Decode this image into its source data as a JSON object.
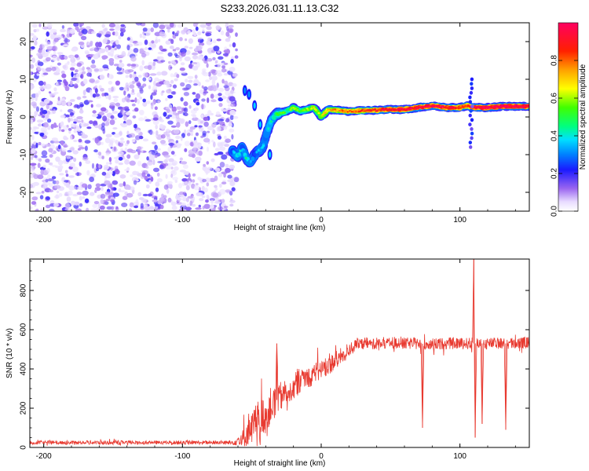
{
  "title": "S233.2026.031.11.13.C32",
  "chart_data": [
    {
      "type": "heatmap",
      "name": "spectrogram",
      "xlabel": "Height of straight line (km)",
      "ylabel": "Frequency (Hz)",
      "xlim": [
        -210,
        150
      ],
      "ylim": [
        -25,
        25
      ],
      "xticks": [
        -200,
        -100,
        0,
        100
      ],
      "yticks": [
        -20,
        -10,
        0,
        10,
        20
      ],
      "colorbar": {
        "label": "Normalized spectral amplitude",
        "range": [
          0.0,
          1.0
        ],
        "ticks": [
          0.0,
          0.2,
          0.4,
          0.6,
          0.8
        ],
        "tick_labels": [
          "0.0",
          "0.2",
          "0.4",
          "0.6",
          "0.8"
        ]
      },
      "noise_region": {
        "x": [
          -210,
          -63
        ],
        "amplitude": "0.1-0.3"
      },
      "signal_ridge": {
        "x": [
          -64,
          -60,
          -57,
          -54,
          -51,
          -48,
          -45,
          -42,
          -39,
          -36,
          -33,
          -30,
          -25,
          -20,
          -15,
          -10,
          -5,
          0,
          5,
          10,
          20,
          30,
          40,
          50,
          60,
          70,
          80,
          90,
          100,
          105,
          110,
          120,
          130,
          140,
          150
        ],
        "frequency": [
          -9,
          -10.5,
          -8,
          -11,
          -12,
          -10,
          -9,
          -8,
          -4,
          -1,
          0.5,
          1,
          1.5,
          2.5,
          1.5,
          2,
          2.5,
          0,
          2,
          1.8,
          1.5,
          1.7,
          1.8,
          2,
          2,
          2.5,
          3,
          2.5,
          2.5,
          3,
          2.5,
          2.5,
          2.8,
          2.8,
          2.8
        ],
        "amplitude": [
          0.3,
          0.4,
          0.35,
          0.4,
          0.35,
          0.3,
          0.35,
          0.35,
          0.4,
          0.45,
          0.45,
          0.5,
          0.5,
          0.55,
          0.5,
          0.55,
          0.6,
          0.6,
          0.65,
          0.7,
          0.75,
          0.8,
          0.85,
          0.88,
          0.9,
          0.9,
          0.9,
          0.88,
          0.85,
          0.8,
          0.9,
          0.95,
          0.95,
          0.95,
          0.95
        ]
      },
      "upper_branch": {
        "x": [
          -55,
          -52,
          -48,
          -44,
          -40,
          -37
        ],
        "frequency": [
          7,
          6,
          3,
          -2,
          -6,
          -10
        ]
      }
    },
    {
      "type": "line",
      "name": "snr",
      "xlabel": "Height of straight line (km)",
      "ylabel": "SNR (10 * v/v)",
      "xlim": [
        -210,
        150
      ],
      "ylim": [
        0,
        960
      ],
      "xticks": [
        -200,
        -100,
        0,
        100
      ],
      "yticks": [
        0,
        200,
        400,
        600,
        800
      ],
      "color": "#e83a30",
      "series": [
        {
          "name": "SNR",
          "x": [
            -210,
            -150,
            -100,
            -70,
            -63,
            -55,
            -48,
            -44,
            -40,
            -35,
            -30,
            -25,
            -20,
            -15,
            -10,
            -5,
            0,
            5,
            10,
            15,
            20,
            25,
            30,
            40,
            50,
            60,
            70,
            80,
            90,
            100,
            110,
            120,
            130,
            140,
            150
          ],
          "values": [
            25,
            25,
            25,
            25,
            25,
            60,
            120,
            160,
            170,
            230,
            250,
            300,
            310,
            350,
            360,
            380,
            400,
            420,
            440,
            470,
            500,
            520,
            530,
            530,
            535,
            530,
            530,
            525,
            530,
            530,
            530,
            530,
            530,
            530,
            535
          ],
          "noise": [
            10,
            10,
            10,
            10,
            12,
            60,
            90,
            100,
            100,
            90,
            80,
            80,
            70,
            70,
            60,
            60,
            50,
            50,
            50,
            40,
            40,
            30,
            30,
            30,
            30,
            30,
            30,
            30,
            30,
            30,
            30,
            30,
            30,
            30,
            30
          ]
        }
      ],
      "spikes": [
        {
          "x": -32,
          "value": 530,
          "direction": "up"
        },
        {
          "x": 73,
          "value": 100,
          "direction": "down"
        },
        {
          "x": 110,
          "value": 960,
          "direction": "up"
        },
        {
          "x": 111,
          "value": 50,
          "direction": "down"
        },
        {
          "x": 116,
          "value": 120,
          "direction": "down"
        },
        {
          "x": 133,
          "value": 90,
          "direction": "down"
        }
      ]
    }
  ]
}
